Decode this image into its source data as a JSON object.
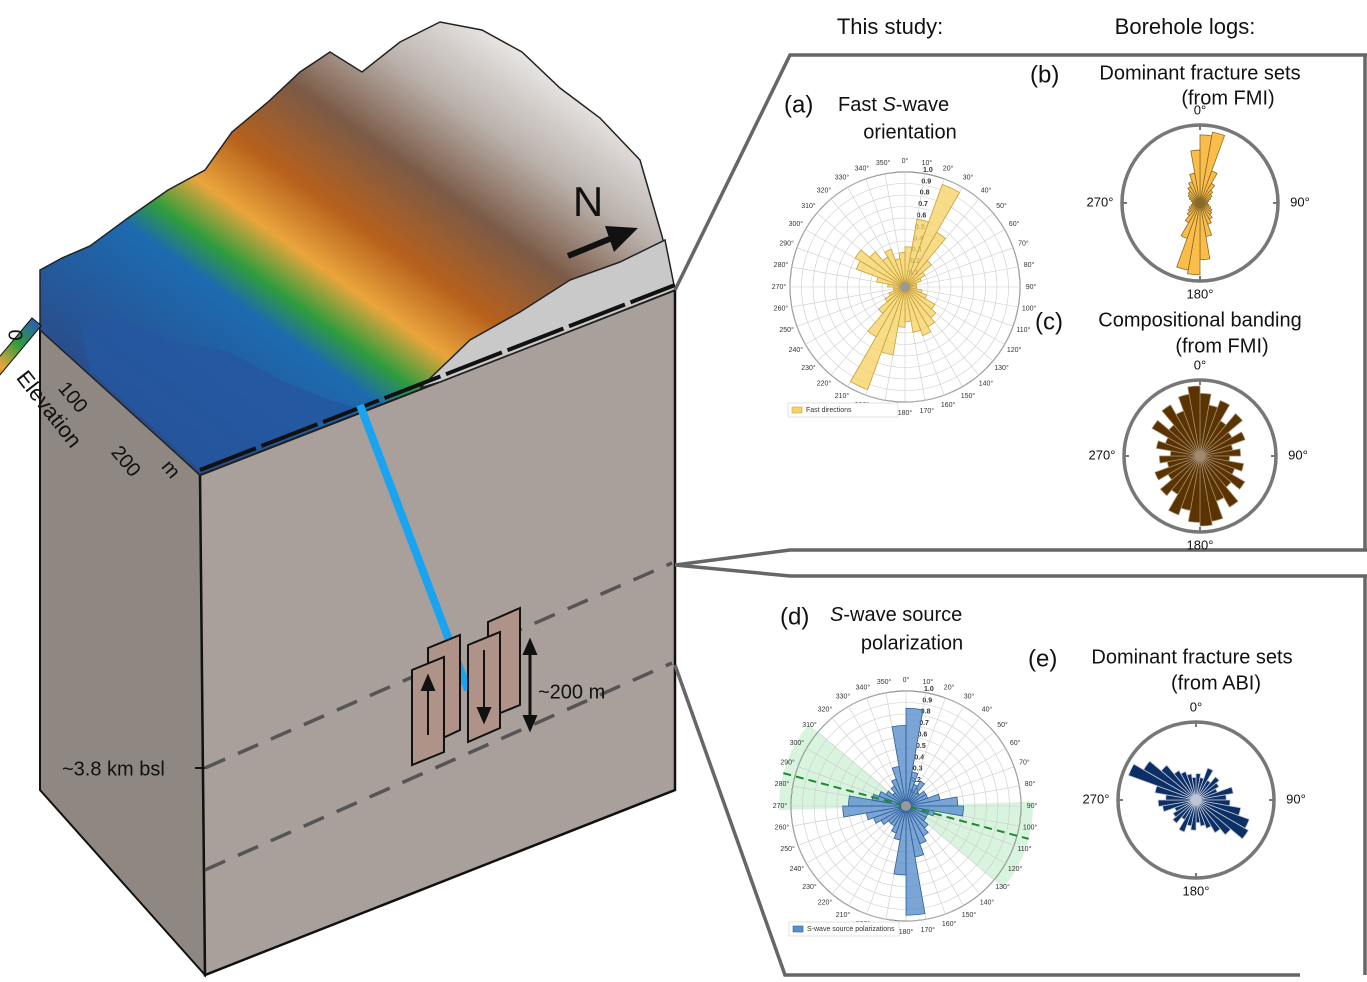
{
  "header": {
    "this_study": "This study:",
    "borehole_logs": "Borehole logs:"
  },
  "block": {
    "north": "N",
    "elevation_label": "Elevation",
    "elevation_ticks": [
      "0",
      "100",
      "200"
    ],
    "elevation_unit": "m",
    "depth_label": "~3.8 km bsl",
    "fault_size": "~200 m"
  },
  "panels": {
    "a": {
      "letter": "(a)",
      "title_pre": "Fast ",
      "title_italic": "S",
      "title_post": "-wave",
      "title2": "orientation",
      "legend": "Fast directions",
      "angle_labels": [
        "0°",
        "10°",
        "20°",
        "30°",
        "40°",
        "50°",
        "60°",
        "70°",
        "80°",
        "90°",
        "100°",
        "110°",
        "120°",
        "130°",
        "140°",
        "150°",
        "160°",
        "170°",
        "180°",
        "190°",
        "200°",
        "210°",
        "220°",
        "230°",
        "240°",
        "250°",
        "260°",
        "270°",
        "280°",
        "290°",
        "300°",
        "310°",
        "320°",
        "330°",
        "340°",
        "350°"
      ],
      "radial_labels": [
        "0.1",
        "0.2",
        "0.3",
        "0.4",
        "0.5",
        "0.6",
        "0.7",
        "0.8",
        "0.9",
        "1.0"
      ],
      "values": [
        0.35,
        0.6,
        0.95,
        0.55,
        0.3,
        0.2,
        0.15,
        0.1,
        0.1,
        0.1,
        0.15,
        0.2,
        0.3,
        0.35,
        0.4,
        0.45,
        0.4,
        0.3,
        0.35,
        0.6,
        0.95,
        0.5,
        0.3,
        0.2,
        0.15,
        0.1,
        0.1,
        0.15,
        0.25,
        0.45,
        0.5,
        0.4,
        0.3,
        0.35,
        0.25,
        0.3
      ]
    },
    "b": {
      "letter": "(b)",
      "title": "Dominant fracture sets",
      "title2": "(from FMI)",
      "compass": [
        "0°",
        "90°",
        "180°",
        "270°"
      ],
      "values": [
        0.9,
        0.95,
        0.45,
        0.3,
        0.22,
        0.18,
        0.15,
        0.12,
        0.1,
        0.1,
        0.12,
        0.15,
        0.18,
        0.2,
        0.25,
        0.3,
        0.45,
        0.75,
        0.95,
        0.9,
        0.5,
        0.3,
        0.22,
        0.18,
        0.15,
        0.12,
        0.1,
        0.1,
        0.12,
        0.15,
        0.18,
        0.2,
        0.25,
        0.3,
        0.4,
        0.7
      ]
    },
    "c": {
      "letter": "(c)",
      "title": "Compositional banding",
      "title2": "(from FMI)",
      "compass": [
        "0°",
        "90°",
        "180°",
        "270°"
      ],
      "values": [
        0.85,
        0.7,
        0.8,
        0.55,
        0.75,
        0.5,
        0.65,
        0.45,
        0.55,
        0.4,
        0.6,
        0.5,
        0.7,
        0.55,
        0.8,
        0.65,
        0.9,
        0.95,
        0.9,
        0.75,
        0.85,
        0.6,
        0.7,
        0.5,
        0.65,
        0.45,
        0.55,
        0.4,
        0.6,
        0.5,
        0.75,
        0.55,
        0.8,
        0.65,
        0.85,
        0.95
      ]
    },
    "d": {
      "letter": "(d)",
      "title_italic": "S",
      "title_post": "-wave source",
      "title2": "polarization",
      "legend": "S-wave source polarizations",
      "angle_labels": [
        "0°",
        "10°",
        "20°",
        "30°",
        "40°",
        "50°",
        "60°",
        "70°",
        "80°",
        "90°",
        "100°",
        "110°",
        "120°",
        "130°",
        "140°",
        "150°",
        "160°",
        "170°",
        "180°",
        "190°",
        "200°",
        "210°",
        "220°",
        "230°",
        "240°",
        "250°",
        "260°",
        "270°",
        "280°",
        "290°",
        "300°",
        "310°",
        "320°",
        "330°",
        "340°",
        "350°"
      ],
      "radial_labels": [
        "0.1",
        "0.2",
        "0.3",
        "0.4",
        "0.5",
        "0.6",
        "0.7",
        "0.8",
        "0.9",
        "1.0"
      ],
      "values": [
        0.85,
        0.3,
        0.2,
        0.25,
        0.15,
        0.2,
        0.2,
        0.3,
        0.45,
        0.5,
        0.25,
        0.2,
        0.2,
        0.25,
        0.3,
        0.35,
        0.45,
        0.95,
        0.6,
        0.3,
        0.25,
        0.2,
        0.2,
        0.25,
        0.3,
        0.35,
        0.55,
        0.5,
        0.3,
        0.25,
        0.2,
        0.15,
        0.2,
        0.25,
        0.35,
        0.7
      ],
      "fit_azimuth": 285,
      "fit_range": [
        268,
        310
      ]
    },
    "e": {
      "letter": "(e)",
      "title": "Dominant fracture sets",
      "title2": "(from ABI)",
      "compass": [
        "0°",
        "90°",
        "180°",
        "270°"
      ],
      "values": [
        0.35,
        0.3,
        0.45,
        0.3,
        0.4,
        0.35,
        0.3,
        0.5,
        0.4,
        0.45,
        0.6,
        0.75,
        0.8,
        0.6,
        0.5,
        0.4,
        0.35,
        0.3,
        0.4,
        0.35,
        0.45,
        0.3,
        0.4,
        0.35,
        0.3,
        0.45,
        0.5,
        0.4,
        0.55,
        0.95,
        0.8,
        0.6,
        0.45,
        0.4,
        0.35,
        0.3
      ]
    }
  }
}
